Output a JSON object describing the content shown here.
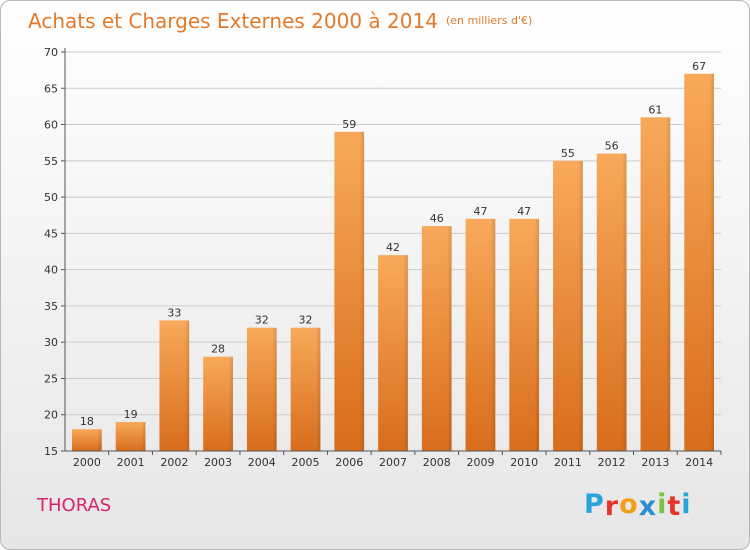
{
  "header": {
    "title": "Achats et Charges Externes 2000 à 2014",
    "subtitle": "(en milliers d'€)"
  },
  "footer": {
    "commune": "THORAS",
    "brand": {
      "letters": [
        "P",
        "r",
        "o",
        "x",
        "i",
        "t",
        "i"
      ],
      "colors": [
        "#2aa4d8",
        "#e6342b",
        "#f29f1a",
        "#2a8fd1",
        "#7cc243",
        "#e6342b",
        "#2aa4d8"
      ]
    }
  },
  "colors": {
    "bar_light": "#f8a95a",
    "bar_dark": "#d86d1c",
    "title": "#e4792a",
    "commune": "#d9226a",
    "grid": "#cccccc"
  },
  "chart_data": {
    "type": "bar",
    "categories": [
      "2000",
      "2001",
      "2002",
      "2003",
      "2004",
      "2005",
      "2006",
      "2007",
      "2008",
      "2009",
      "2010",
      "2011",
      "2012",
      "2013",
      "2014"
    ],
    "values": [
      18,
      19,
      33,
      28,
      32,
      32,
      59,
      42,
      46,
      47,
      47,
      55,
      56,
      61,
      67
    ],
    "data_labels": [
      "18",
      "19",
      "33",
      "28",
      "32",
      "32",
      "59",
      "42",
      "46",
      "47",
      "47",
      "55",
      "56",
      "61",
      "67"
    ],
    "yticks": [
      "15",
      "20",
      "25",
      "30",
      "35",
      "40",
      "45",
      "50",
      "55",
      "60",
      "65",
      "70"
    ],
    "ylim": [
      15,
      70
    ],
    "grid": true,
    "legend": "none"
  }
}
